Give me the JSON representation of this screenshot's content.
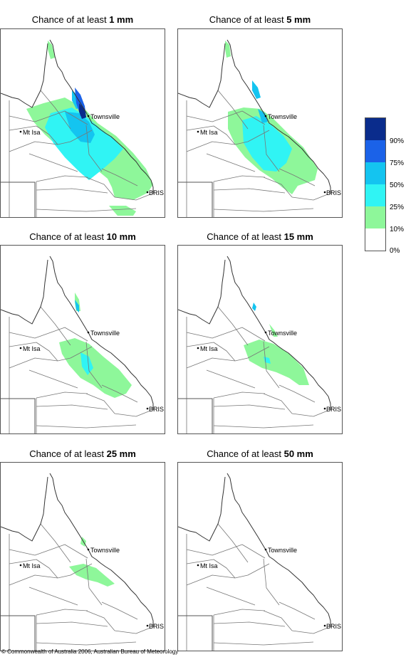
{
  "maps": [
    {
      "title_prefix": "Chance of at least",
      "threshold": "1 mm"
    },
    {
      "title_prefix": "Chance of at least",
      "threshold": "5 mm"
    },
    {
      "title_prefix": "Chance of at least",
      "threshold": "10 mm"
    },
    {
      "title_prefix": "Chance of at least",
      "threshold": "15 mm"
    },
    {
      "title_prefix": "Chance of at least",
      "threshold": "25 mm"
    },
    {
      "title_prefix": "Chance of at least",
      "threshold": "50 mm"
    }
  ],
  "places": {
    "townsville": "Townsville",
    "mt_isa": "Mt Isa",
    "brisbane": "BRIS"
  },
  "legend": {
    "classes": [
      {
        "label": "90%",
        "color": "#0a2c8c"
      },
      {
        "label": "75%",
        "color": "#1b62e8"
      },
      {
        "label": "50%",
        "color": "#14c4f0"
      },
      {
        "label": "25%",
        "color": "#30f4f4"
      },
      {
        "label": "10%",
        "color": "#8ef79a"
      },
      {
        "label": "0%",
        "color": "#ffffff"
      }
    ]
  },
  "copyright": "© Commonwealth of Australia 2006, Australian Bureau of Meteorology"
}
